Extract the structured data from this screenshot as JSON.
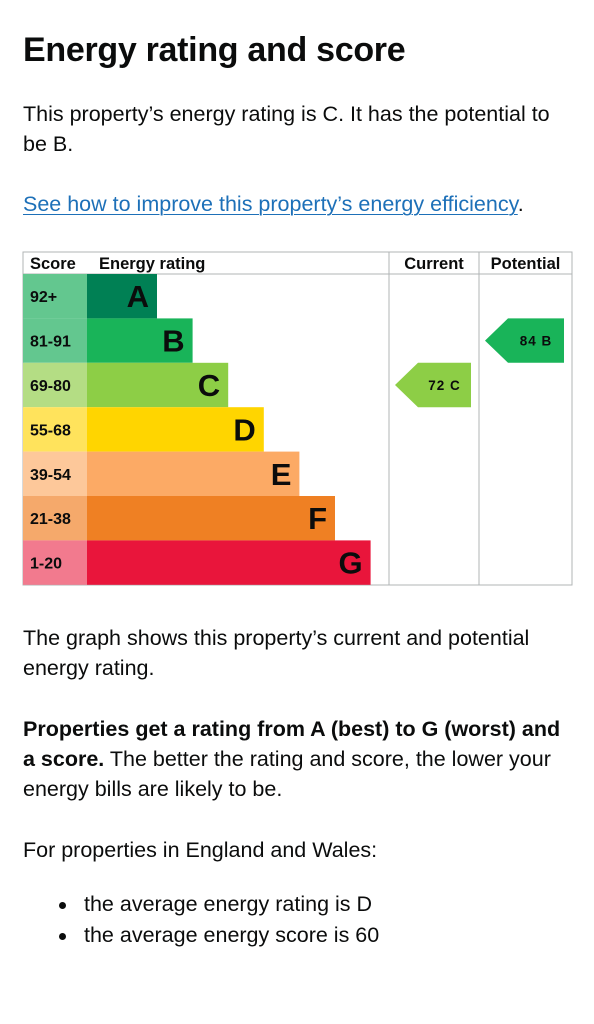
{
  "title": "Energy rating and score",
  "intro": "This property’s energy rating is C. It has the potential to be B.",
  "improve_link": "See how to improve this property’s energy efficiency",
  "improve_link_suffix": ".",
  "chart_data": {
    "type": "table",
    "headers": {
      "score": "Score",
      "rating": "Energy rating",
      "current": "Current",
      "potential": "Potential"
    },
    "bands": [
      {
        "range": "92+",
        "letter": "A",
        "color": "#008054",
        "label_bg": "#63c78f"
      },
      {
        "range": "81-91",
        "letter": "B",
        "color": "#19b459",
        "label_bg": "#63c78f"
      },
      {
        "range": "69-80",
        "letter": "C",
        "color": "#8dce46",
        "label_bg": "#b4dd84"
      },
      {
        "range": "55-68",
        "letter": "D",
        "color": "#ffd500",
        "label_bg": "#ffe35c"
      },
      {
        "range": "39-54",
        "letter": "E",
        "color": "#fcaa65",
        "label_bg": "#fdc89a"
      },
      {
        "range": "21-38",
        "letter": "F",
        "color": "#ef8023",
        "label_bg": "#f5a96b"
      },
      {
        "range": "1-20",
        "letter": "G",
        "color": "#e9153b",
        "label_bg": "#f27a8e"
      }
    ],
    "current": {
      "score": 72,
      "letter": "C",
      "label": "72 C",
      "color": "#8dce46"
    },
    "potential": {
      "score": 84,
      "letter": "B",
      "label": "84 B",
      "color": "#19b459"
    }
  },
  "graph_description": "The graph shows this property’s current and potential energy rating.",
  "ratings_bold": "Properties get a rating from A (best) to G (worst) and a score.",
  "ratings_rest": " The better the rating and score, the lower your energy bills are likely to be.",
  "for_properties": "For properties in England and Wales:",
  "averages": [
    "the average energy rating is D",
    "the average energy score is 60"
  ]
}
